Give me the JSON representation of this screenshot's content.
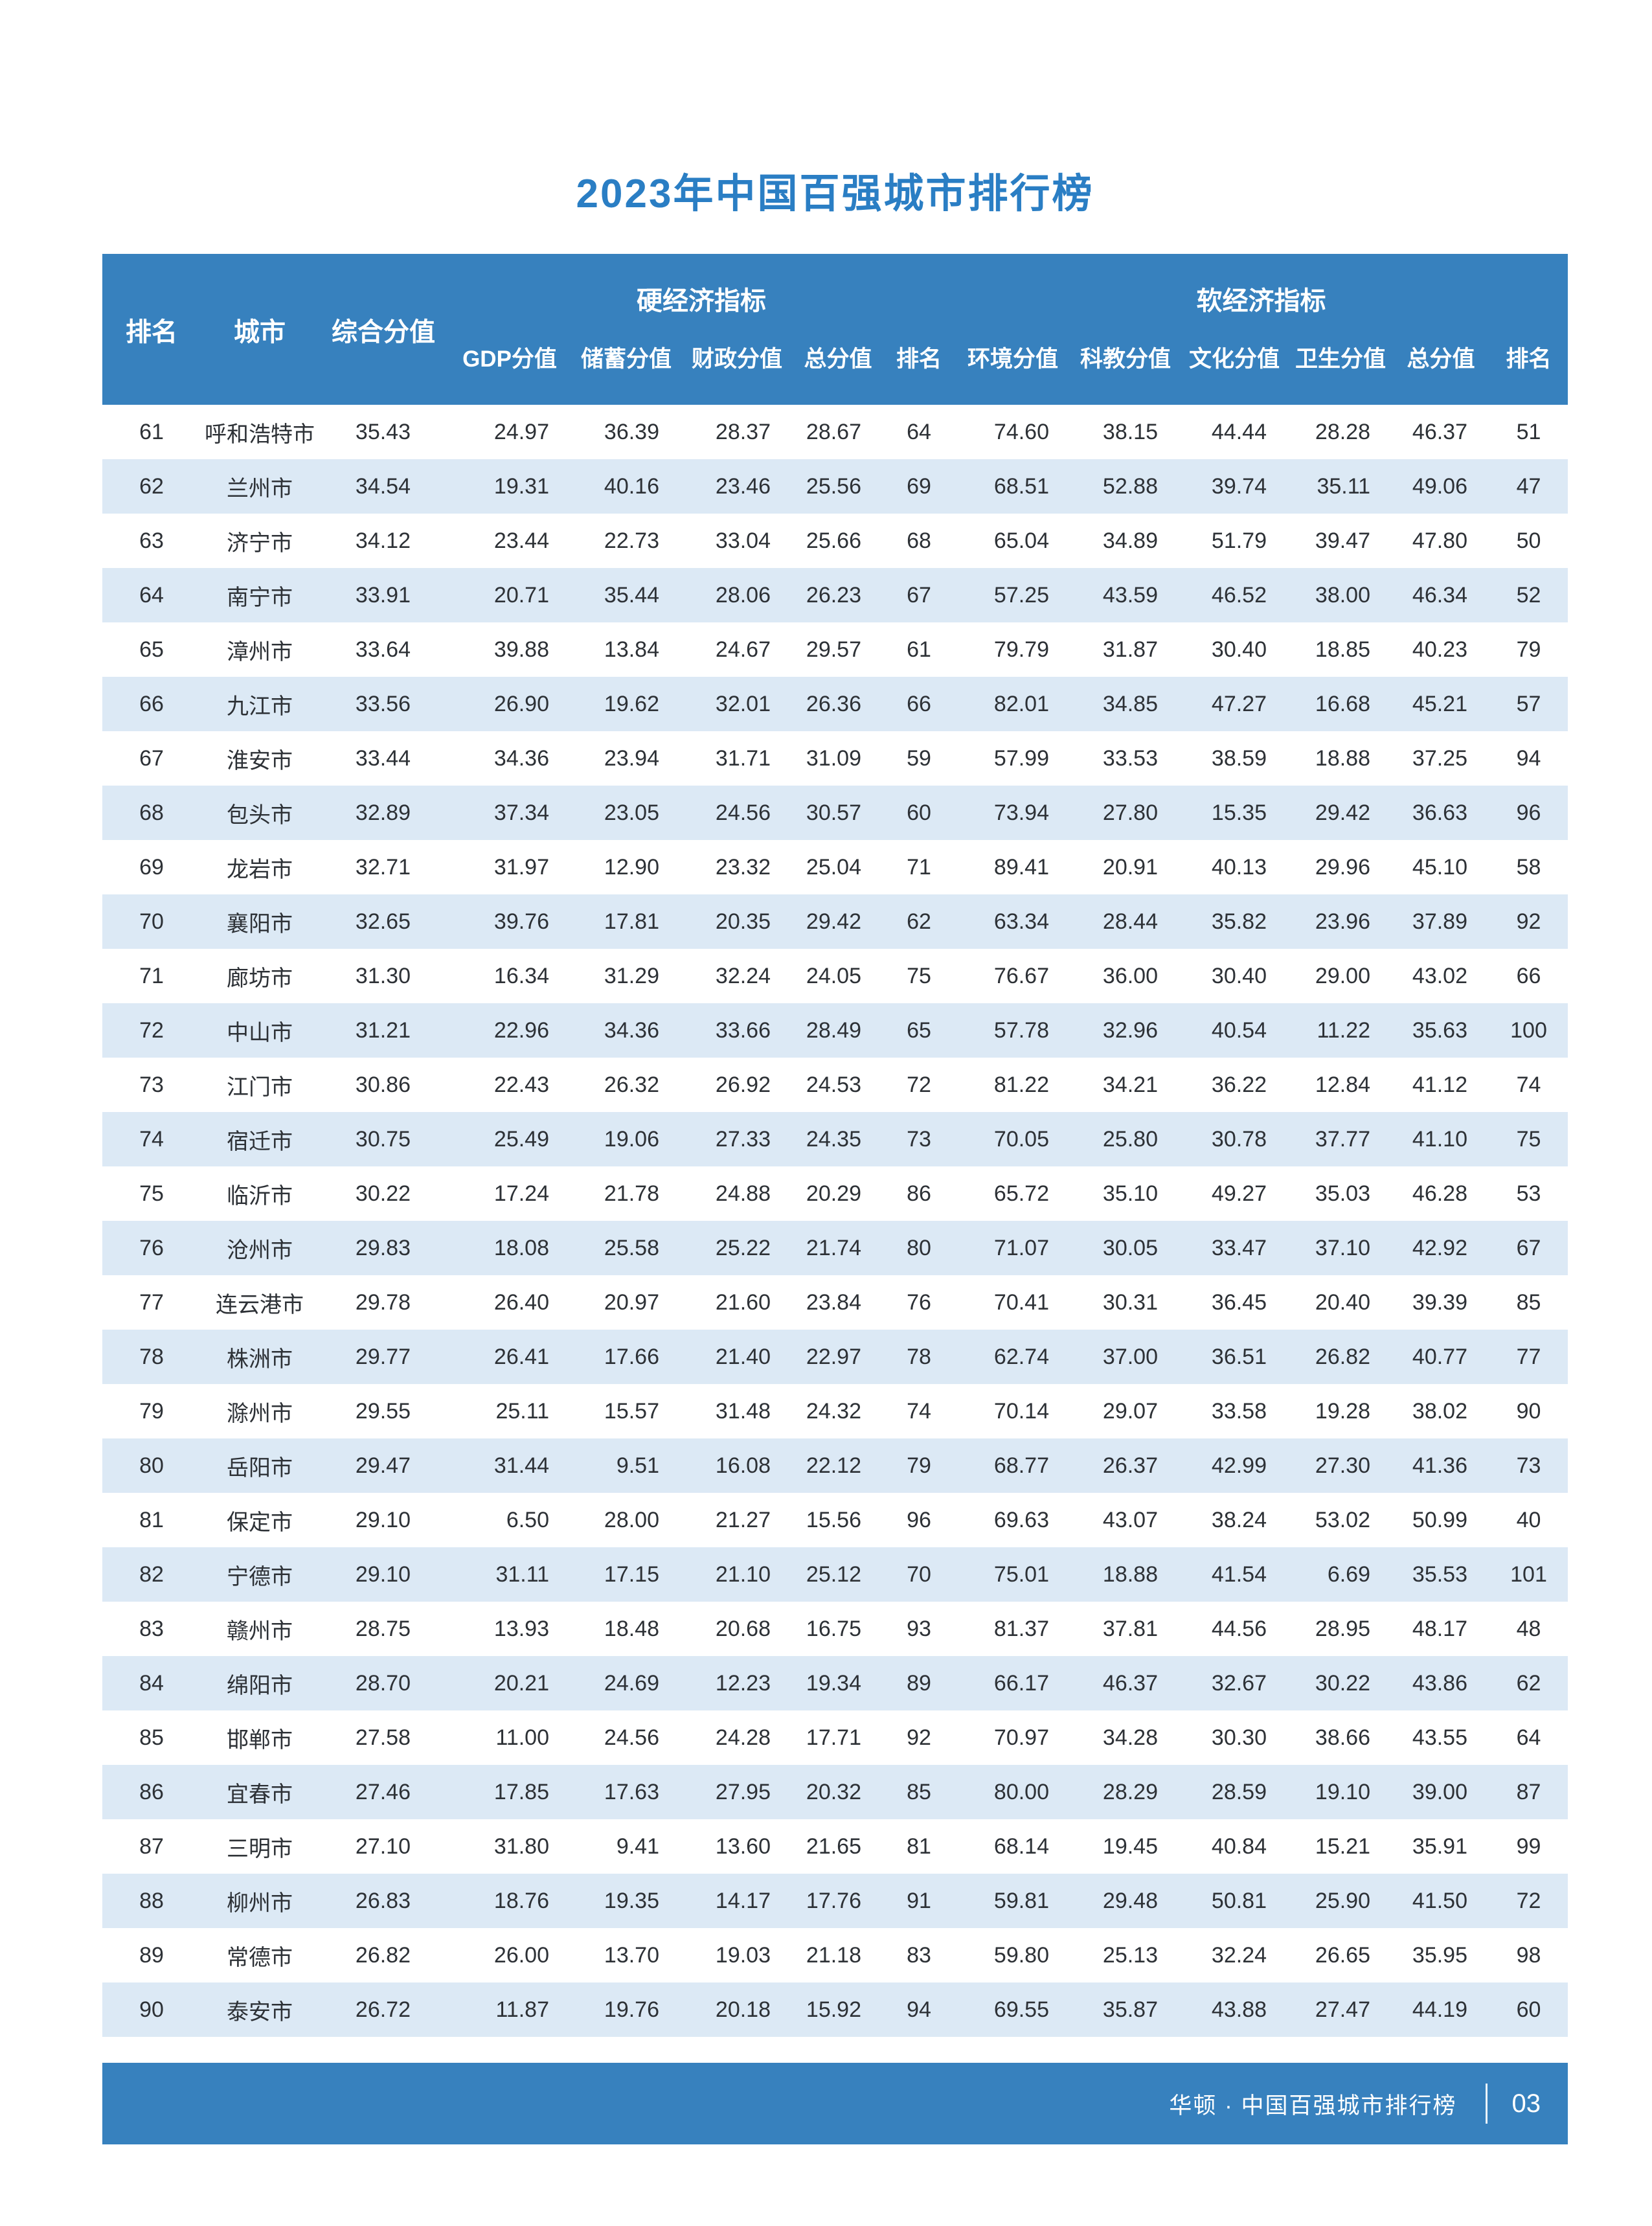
{
  "title": "2023年中国百强城市排行榜",
  "colors": {
    "bar_blue": "#3781be",
    "row_alt_blue": "#dce9f5",
    "title_blue": "#2a7ec4",
    "text_dark": "#2d3136"
  },
  "table": {
    "headers": {
      "rank": "排名",
      "city": "城市",
      "composite": "综合分值",
      "hard_group": "硬经济指标",
      "soft_group": "软经济指标",
      "hard_cols": [
        "GDP分值",
        "储蓄分值",
        "财政分值",
        "总分值",
        "排名"
      ],
      "soft_cols": [
        "环境分值",
        "科教分值",
        "文化分值",
        "卫生分值",
        "总分值",
        "排名"
      ]
    },
    "rows": [
      [
        "61",
        "呼和浩特市",
        "35.43",
        "24.97",
        "36.39",
        "28.37",
        "28.67",
        "64",
        "74.60",
        "38.15",
        "44.44",
        "28.28",
        "46.37",
        "51"
      ],
      [
        "62",
        "兰州市",
        "34.54",
        "19.31",
        "40.16",
        "23.46",
        "25.56",
        "69",
        "68.51",
        "52.88",
        "39.74",
        "35.11",
        "49.06",
        "47"
      ],
      [
        "63",
        "济宁市",
        "34.12",
        "23.44",
        "22.73",
        "33.04",
        "25.66",
        "68",
        "65.04",
        "34.89",
        "51.79",
        "39.47",
        "47.80",
        "50"
      ],
      [
        "64",
        "南宁市",
        "33.91",
        "20.71",
        "35.44",
        "28.06",
        "26.23",
        "67",
        "57.25",
        "43.59",
        "46.52",
        "38.00",
        "46.34",
        "52"
      ],
      [
        "65",
        "漳州市",
        "33.64",
        "39.88",
        "13.84",
        "24.67",
        "29.57",
        "61",
        "79.79",
        "31.87",
        "30.40",
        "18.85",
        "40.23",
        "79"
      ],
      [
        "66",
        "九江市",
        "33.56",
        "26.90",
        "19.62",
        "32.01",
        "26.36",
        "66",
        "82.01",
        "34.85",
        "47.27",
        "16.68",
        "45.21",
        "57"
      ],
      [
        "67",
        "淮安市",
        "33.44",
        "34.36",
        "23.94",
        "31.71",
        "31.09",
        "59",
        "57.99",
        "33.53",
        "38.59",
        "18.88",
        "37.25",
        "94"
      ],
      [
        "68",
        "包头市",
        "32.89",
        "37.34",
        "23.05",
        "24.56",
        "30.57",
        "60",
        "73.94",
        "27.80",
        "15.35",
        "29.42",
        "36.63",
        "96"
      ],
      [
        "69",
        "龙岩市",
        "32.71",
        "31.97",
        "12.90",
        "23.32",
        "25.04",
        "71",
        "89.41",
        "20.91",
        "40.13",
        "29.96",
        "45.10",
        "58"
      ],
      [
        "70",
        "襄阳市",
        "32.65",
        "39.76",
        "17.81",
        "20.35",
        "29.42",
        "62",
        "63.34",
        "28.44",
        "35.82",
        "23.96",
        "37.89",
        "92"
      ],
      [
        "71",
        "廊坊市",
        "31.30",
        "16.34",
        "31.29",
        "32.24",
        "24.05",
        "75",
        "76.67",
        "36.00",
        "30.40",
        "29.00",
        "43.02",
        "66"
      ],
      [
        "72",
        "中山市",
        "31.21",
        "22.96",
        "34.36",
        "33.66",
        "28.49",
        "65",
        "57.78",
        "32.96",
        "40.54",
        "11.22",
        "35.63",
        "100"
      ],
      [
        "73",
        "江门市",
        "30.86",
        "22.43",
        "26.32",
        "26.92",
        "24.53",
        "72",
        "81.22",
        "34.21",
        "36.22",
        "12.84",
        "41.12",
        "74"
      ],
      [
        "74",
        "宿迁市",
        "30.75",
        "25.49",
        "19.06",
        "27.33",
        "24.35",
        "73",
        "70.05",
        "25.80",
        "30.78",
        "37.77",
        "41.10",
        "75"
      ],
      [
        "75",
        "临沂市",
        "30.22",
        "17.24",
        "21.78",
        "24.88",
        "20.29",
        "86",
        "65.72",
        "35.10",
        "49.27",
        "35.03",
        "46.28",
        "53"
      ],
      [
        "76",
        "沧州市",
        "29.83",
        "18.08",
        "25.58",
        "25.22",
        "21.74",
        "80",
        "71.07",
        "30.05",
        "33.47",
        "37.10",
        "42.92",
        "67"
      ],
      [
        "77",
        "连云港市",
        "29.78",
        "26.40",
        "20.97",
        "21.60",
        "23.84",
        "76",
        "70.41",
        "30.31",
        "36.45",
        "20.40",
        "39.39",
        "85"
      ],
      [
        "78",
        "株洲市",
        "29.77",
        "26.41",
        "17.66",
        "21.40",
        "22.97",
        "78",
        "62.74",
        "37.00",
        "36.51",
        "26.82",
        "40.77",
        "77"
      ],
      [
        "79",
        "滁州市",
        "29.55",
        "25.11",
        "15.57",
        "31.48",
        "24.32",
        "74",
        "70.14",
        "29.07",
        "33.58",
        "19.28",
        "38.02",
        "90"
      ],
      [
        "80",
        "岳阳市",
        "29.47",
        "31.44",
        "9.51",
        "16.08",
        "22.12",
        "79",
        "68.77",
        "26.37",
        "42.99",
        "27.30",
        "41.36",
        "73"
      ],
      [
        "81",
        "保定市",
        "29.10",
        "6.50",
        "28.00",
        "21.27",
        "15.56",
        "96",
        "69.63",
        "43.07",
        "38.24",
        "53.02",
        "50.99",
        "40"
      ],
      [
        "82",
        "宁德市",
        "29.10",
        "31.11",
        "17.15",
        "21.10",
        "25.12",
        "70",
        "75.01",
        "18.88",
        "41.54",
        "6.69",
        "35.53",
        "101"
      ],
      [
        "83",
        "赣州市",
        "28.75",
        "13.93",
        "18.48",
        "20.68",
        "16.75",
        "93",
        "81.37",
        "37.81",
        "44.56",
        "28.95",
        "48.17",
        "48"
      ],
      [
        "84",
        "绵阳市",
        "28.70",
        "20.21",
        "24.69",
        "12.23",
        "19.34",
        "89",
        "66.17",
        "46.37",
        "32.67",
        "30.22",
        "43.86",
        "62"
      ],
      [
        "85",
        "邯郸市",
        "27.58",
        "11.00",
        "24.56",
        "24.28",
        "17.71",
        "92",
        "70.97",
        "34.28",
        "30.30",
        "38.66",
        "43.55",
        "64"
      ],
      [
        "86",
        "宜春市",
        "27.46",
        "17.85",
        "17.63",
        "27.95",
        "20.32",
        "85",
        "80.00",
        "28.29",
        "28.59",
        "19.10",
        "39.00",
        "87"
      ],
      [
        "87",
        "三明市",
        "27.10",
        "31.80",
        "9.41",
        "13.60",
        "21.65",
        "81",
        "68.14",
        "19.45",
        "40.84",
        "15.21",
        "35.91",
        "99"
      ],
      [
        "88",
        "柳州市",
        "26.83",
        "18.76",
        "19.35",
        "14.17",
        "17.76",
        "91",
        "59.81",
        "29.48",
        "50.81",
        "25.90",
        "41.50",
        "72"
      ],
      [
        "89",
        "常德市",
        "26.82",
        "26.00",
        "13.70",
        "19.03",
        "21.18",
        "83",
        "59.80",
        "25.13",
        "32.24",
        "26.65",
        "35.95",
        "98"
      ],
      [
        "90",
        "泰安市",
        "26.72",
        "11.87",
        "19.76",
        "20.18",
        "15.92",
        "94",
        "69.55",
        "35.87",
        "43.88",
        "27.47",
        "44.19",
        "60"
      ]
    ]
  },
  "footer": {
    "brand": "华顿 · 中国百强城市排行榜",
    "page": "03"
  }
}
